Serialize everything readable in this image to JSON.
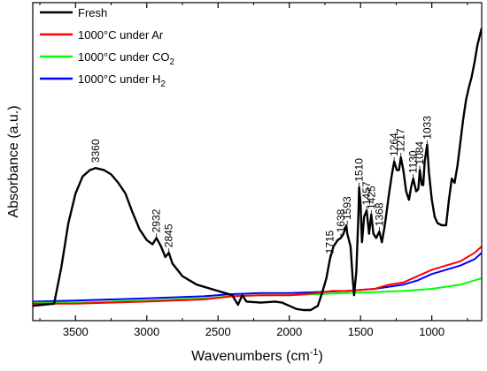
{
  "chart_data": {
    "type": "line",
    "title": "",
    "xlabel": "Wavenumbers (cm",
    "xlabel_sup": "-1",
    "xlabel_tail": ")",
    "ylabel": "Absorbance (a.u.)",
    "xlim": [
      3800,
      650
    ],
    "x_reversed": true,
    "x_ticks": [
      3500,
      3000,
      2500,
      2000,
      1500,
      1000
    ],
    "y_ticks_shown": false,
    "grid": false,
    "legend_position": "top-left",
    "series": [
      {
        "name": "Fresh",
        "color": "#000000",
        "points": [
          [
            3800,
            0.02
          ],
          [
            3650,
            0.03
          ],
          [
            3600,
            0.2
          ],
          [
            3550,
            0.41
          ],
          [
            3500,
            0.55
          ],
          [
            3450,
            0.63
          ],
          [
            3400,
            0.66
          ],
          [
            3360,
            0.67
          ],
          [
            3300,
            0.66
          ],
          [
            3250,
            0.64
          ],
          [
            3200,
            0.6
          ],
          [
            3150,
            0.55
          ],
          [
            3100,
            0.46
          ],
          [
            3050,
            0.38
          ],
          [
            3000,
            0.33
          ],
          [
            2960,
            0.31
          ],
          [
            2932,
            0.34
          ],
          [
            2900,
            0.3
          ],
          [
            2870,
            0.25
          ],
          [
            2845,
            0.27
          ],
          [
            2820,
            0.22
          ],
          [
            2750,
            0.16
          ],
          [
            2650,
            0.12
          ],
          [
            2550,
            0.1
          ],
          [
            2450,
            0.08
          ],
          [
            2400,
            0.07
          ],
          [
            2360,
            0.025
          ],
          [
            2330,
            0.07
          ],
          [
            2300,
            0.04
          ],
          [
            2200,
            0.035
          ],
          [
            2100,
            0.04
          ],
          [
            2050,
            0.035
          ],
          [
            2000,
            0.02
          ],
          [
            1950,
            0.005
          ],
          [
            1900,
            0.0
          ],
          [
            1850,
            0.0
          ],
          [
            1800,
            0.02
          ],
          [
            1770,
            0.08
          ],
          [
            1740,
            0.15
          ],
          [
            1715,
            0.24
          ],
          [
            1690,
            0.3
          ],
          [
            1660,
            0.33
          ],
          [
            1638,
            0.34
          ],
          [
            1620,
            0.36
          ],
          [
            1600,
            0.4
          ],
          [
            1593,
            0.36
          ],
          [
            1570,
            0.3
          ],
          [
            1555,
            0.15
          ],
          [
            1545,
            0.07
          ],
          [
            1530,
            0.18
          ],
          [
            1515,
            0.45
          ],
          [
            1510,
            0.58
          ],
          [
            1500,
            0.5
          ],
          [
            1490,
            0.32
          ],
          [
            1475,
            0.44
          ],
          [
            1457,
            0.47
          ],
          [
            1440,
            0.36
          ],
          [
            1425,
            0.45
          ],
          [
            1410,
            0.36
          ],
          [
            1390,
            0.34
          ],
          [
            1368,
            0.37
          ],
          [
            1350,
            0.32
          ],
          [
            1330,
            0.4
          ],
          [
            1300,
            0.55
          ],
          [
            1280,
            0.64
          ],
          [
            1264,
            0.7
          ],
          [
            1245,
            0.66
          ],
          [
            1230,
            0.66
          ],
          [
            1217,
            0.72
          ],
          [
            1200,
            0.66
          ],
          [
            1180,
            0.56
          ],
          [
            1160,
            0.52
          ],
          [
            1145,
            0.58
          ],
          [
            1130,
            0.62
          ],
          [
            1110,
            0.56
          ],
          [
            1095,
            0.57
          ],
          [
            1084,
            0.66
          ],
          [
            1070,
            0.59
          ],
          [
            1060,
            0.59
          ],
          [
            1050,
            0.7
          ],
          [
            1033,
            0.78
          ],
          [
            1020,
            0.65
          ],
          [
            1000,
            0.52
          ],
          [
            980,
            0.44
          ],
          [
            960,
            0.41
          ],
          [
            930,
            0.4
          ],
          [
            900,
            0.4
          ],
          [
            880,
            0.52
          ],
          [
            860,
            0.62
          ],
          [
            840,
            0.6
          ],
          [
            820,
            0.68
          ],
          [
            800,
            0.79
          ],
          [
            780,
            0.9
          ],
          [
            760,
            0.99
          ],
          [
            740,
            1.05
          ],
          [
            720,
            1.1
          ],
          [
            700,
            1.17
          ],
          [
            680,
            1.25
          ],
          [
            650,
            1.33
          ]
        ]
      },
      {
        "name": "1000°C under Ar",
        "color": "#ff0000",
        "points": [
          [
            3800,
            0.03
          ],
          [
            3500,
            0.03
          ],
          [
            3000,
            0.04
          ],
          [
            2600,
            0.05
          ],
          [
            2400,
            0.065
          ],
          [
            2200,
            0.07
          ],
          [
            2000,
            0.07
          ],
          [
            1800,
            0.08
          ],
          [
            1700,
            0.09
          ],
          [
            1600,
            0.09
          ],
          [
            1500,
            0.095
          ],
          [
            1400,
            0.1
          ],
          [
            1300,
            0.12
          ],
          [
            1200,
            0.13
          ],
          [
            1100,
            0.16
          ],
          [
            1000,
            0.19
          ],
          [
            900,
            0.21
          ],
          [
            800,
            0.23
          ],
          [
            700,
            0.27
          ],
          [
            650,
            0.3
          ]
        ]
      },
      {
        "name": "1000°C under CO",
        "name_sub": "2",
        "color": "#00ff00",
        "points": [
          [
            3800,
            0.035
          ],
          [
            3500,
            0.035
          ],
          [
            3000,
            0.045
          ],
          [
            2600,
            0.055
          ],
          [
            2400,
            0.065
          ],
          [
            2200,
            0.07
          ],
          [
            2000,
            0.07
          ],
          [
            1800,
            0.075
          ],
          [
            1600,
            0.08
          ],
          [
            1400,
            0.085
          ],
          [
            1200,
            0.09
          ],
          [
            1000,
            0.1
          ],
          [
            900,
            0.11
          ],
          [
            800,
            0.12
          ],
          [
            700,
            0.14
          ],
          [
            650,
            0.15
          ]
        ]
      },
      {
        "name": "1000°C under H",
        "name_sub": "2",
        "color": "#0000ff",
        "points": [
          [
            3800,
            0.04
          ],
          [
            3500,
            0.045
          ],
          [
            3000,
            0.055
          ],
          [
            2600,
            0.065
          ],
          [
            2400,
            0.075
          ],
          [
            2200,
            0.08
          ],
          [
            2000,
            0.08
          ],
          [
            1800,
            0.085
          ],
          [
            1600,
            0.09
          ],
          [
            1400,
            0.1
          ],
          [
            1300,
            0.11
          ],
          [
            1200,
            0.12
          ],
          [
            1100,
            0.14
          ],
          [
            1000,
            0.17
          ],
          [
            900,
            0.19
          ],
          [
            800,
            0.21
          ],
          [
            700,
            0.24
          ],
          [
            650,
            0.27
          ]
        ]
      }
    ],
    "annotations": [
      {
        "text": "3360",
        "x": 3360,
        "y": 0.67
      },
      {
        "text": "2932",
        "x": 2932,
        "y": 0.34
      },
      {
        "text": "2845",
        "x": 2845,
        "y": 0.27
      },
      {
        "text": "1715",
        "x": 1715,
        "y": 0.24
      },
      {
        "text": "1638",
        "x": 1638,
        "y": 0.34
      },
      {
        "text": "1593",
        "x": 1593,
        "y": 0.4
      },
      {
        "text": "1510",
        "x": 1510,
        "y": 0.58
      },
      {
        "text": "1457",
        "x": 1457,
        "y": 0.47
      },
      {
        "text": "1425",
        "x": 1425,
        "y": 0.45
      },
      {
        "text": "1368",
        "x": 1368,
        "y": 0.37
      },
      {
        "text": "1264",
        "x": 1264,
        "y": 0.7
      },
      {
        "text": "1217",
        "x": 1217,
        "y": 0.72
      },
      {
        "text": "1130",
        "x": 1130,
        "y": 0.62
      },
      {
        "text": "1084",
        "x": 1084,
        "y": 0.66
      },
      {
        "text": "1033",
        "x": 1033,
        "y": 0.78
      }
    ]
  }
}
